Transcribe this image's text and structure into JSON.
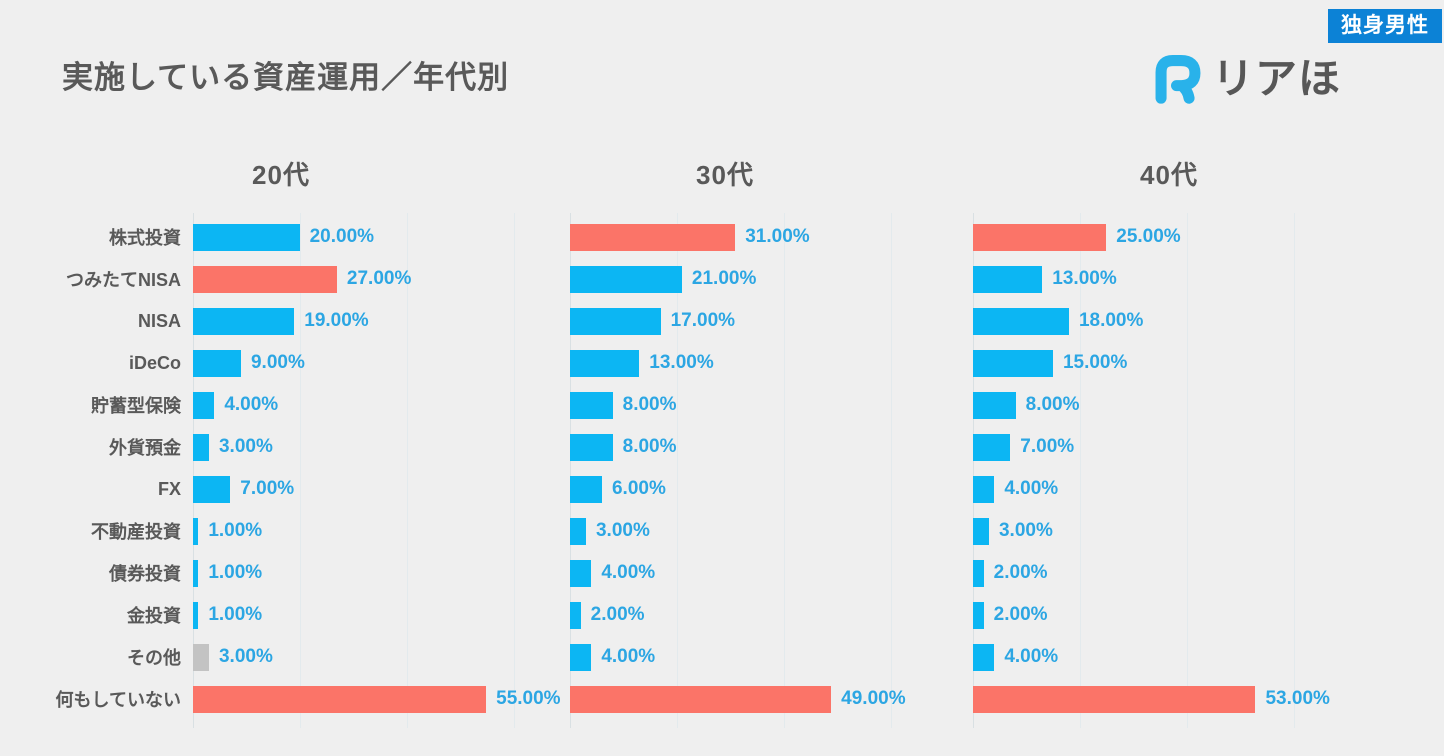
{
  "badge": {
    "label": "独身男性"
  },
  "title": "実施している資産運用／年代別",
  "logo": {
    "text": "リアほ"
  },
  "colors": {
    "blue": "#0cb6f3",
    "red": "#fb7468",
    "gray": "#c3c3c3",
    "value_text": "#2ca6e3",
    "badge_bg": "#0c82d6",
    "logo_blue": "#29b2ea",
    "label_gray": "#595959",
    "background": "#efefef"
  },
  "chart_data": {
    "type": "bar",
    "orientation": "horizontal",
    "title": "実施している資産運用／年代別",
    "value_suffix": "%",
    "value_decimals": 2,
    "xlim": [
      0,
      60
    ],
    "gridline_step_percent": 20,
    "categories": [
      "株式投資",
      "つみたてNISA",
      "NISA",
      "iDeCo",
      "貯蓄型保険",
      "外貨預金",
      "FX",
      "不動産投資",
      "債券投資",
      "金投資",
      "その他",
      "何もしていない"
    ],
    "series": [
      {
        "name": "20代",
        "values": [
          20,
          27,
          19,
          9,
          4,
          3,
          7,
          1,
          1,
          1,
          3,
          55
        ],
        "colors": [
          "blue",
          "red",
          "blue",
          "blue",
          "blue",
          "blue",
          "blue",
          "blue",
          "blue",
          "blue",
          "gray",
          "red"
        ]
      },
      {
        "name": "30代",
        "values": [
          31,
          21,
          17,
          13,
          8,
          8,
          6,
          3,
          4,
          2,
          4,
          49
        ],
        "colors": [
          "red",
          "blue",
          "blue",
          "blue",
          "blue",
          "blue",
          "blue",
          "blue",
          "blue",
          "blue",
          "blue",
          "red"
        ]
      },
      {
        "name": "40代",
        "values": [
          25,
          13,
          18,
          15,
          8,
          7,
          4,
          3,
          2,
          2,
          4,
          53
        ],
        "colors": [
          "red",
          "blue",
          "blue",
          "blue",
          "blue",
          "blue",
          "blue",
          "blue",
          "blue",
          "blue",
          "blue",
          "red"
        ]
      }
    ]
  }
}
